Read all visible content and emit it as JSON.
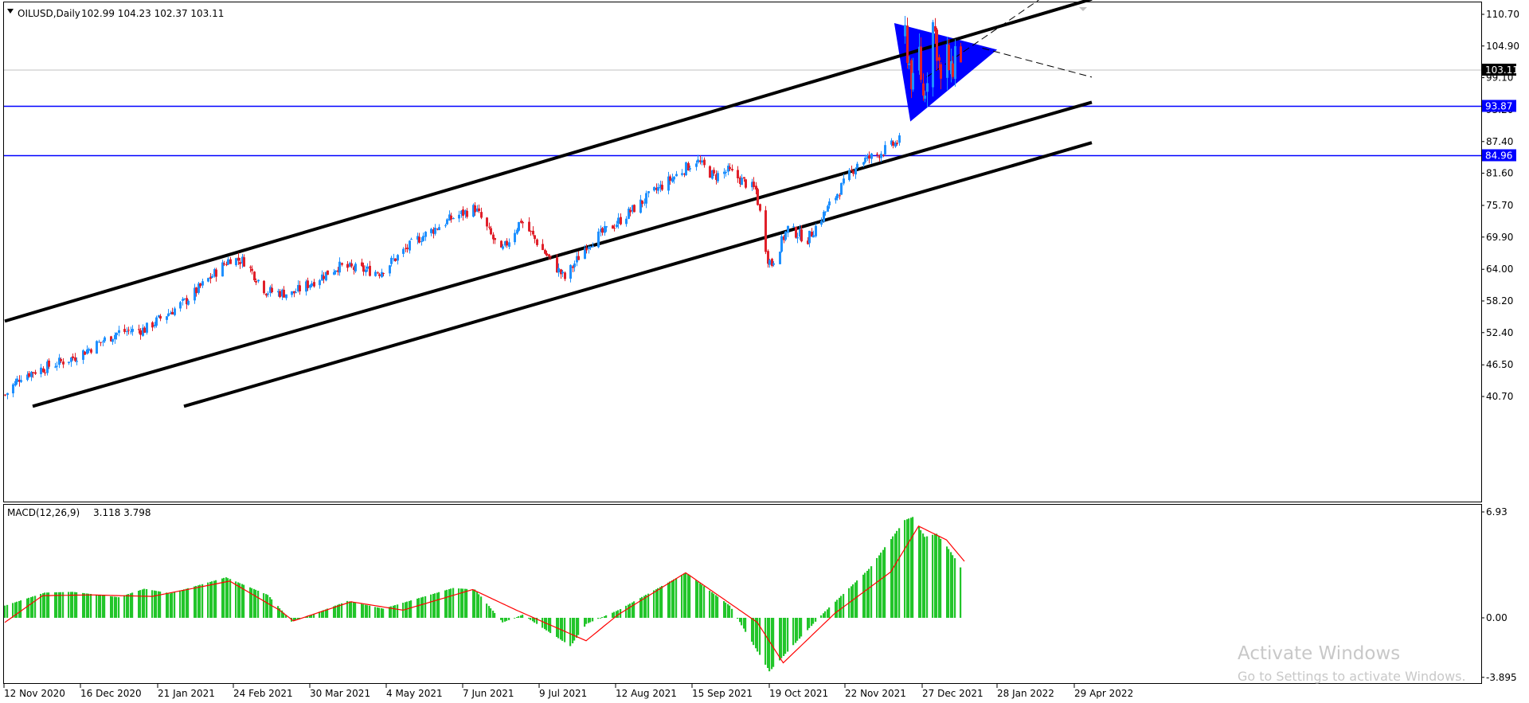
{
  "main_header": {
    "symbol_timeframe": "OILUSD,Daily",
    "ohlc": "102.99 104.23 102.37 103.11",
    "menu_arrow_icon": "triangle-down-icon"
  },
  "macd_header": {
    "indicator": "MACD(12,26,9)",
    "values": "3.118 3.798"
  },
  "watermark": {
    "line1": "Activate Windows",
    "line2": "Go to Settings to activate Windows."
  },
  "price_axis": {
    "ticks": [
      "110.70",
      "104.90",
      "99.10",
      "93.20",
      "87.40",
      "81.60",
      "75.70",
      "69.90",
      "64.00",
      "58.20",
      "52.40",
      "46.50",
      "40.70"
    ],
    "current_price_label": "103.11",
    "level_labels": [
      "93.87",
      "84.96"
    ]
  },
  "macd_axis": {
    "ticks": [
      "6.93",
      "0.00",
      "-3.895"
    ]
  },
  "time_axis": {
    "labels": [
      "12 Nov 2020",
      "16 Dec 2020",
      "21 Jan 2021",
      "24 Feb 2021",
      "30 Mar 2021",
      "4 May 2021",
      "7 Jun 2021",
      "9 Jul 2021",
      "12 Aug 2021",
      "15 Sep 2021",
      "19 Oct 2021",
      "22 Nov 2021",
      "27 Dec 2021",
      "28 Jan 2022",
      "29 Apr 2022"
    ]
  },
  "colors": {
    "bull_candle": "#1e90ff",
    "bear_candle": "#e0202a",
    "level_line": "#0000ff",
    "triangle_fill": "#0000ff",
    "channel_line": "#000000",
    "macd_histogram": "#22c52a",
    "macd_signal": "#ff0000",
    "current_price_bg": "#000000"
  },
  "chart_data": [
    {
      "type": "candlestick",
      "title": "OILUSD,Daily",
      "ylim": [
        38.9,
        114.2
      ],
      "x_range": [
        "2020-11-12",
        "2022-03-10"
      ],
      "waypoints": [
        {
          "date": "2020-11-12",
          "price": 41.0
        },
        {
          "date": "2020-11-20",
          "price": 44.5
        },
        {
          "date": "2020-12-16",
          "price": 47.8
        },
        {
          "date": "2021-01-08",
          "price": 52.5
        },
        {
          "date": "2021-01-21",
          "price": 53.0
        },
        {
          "date": "2021-02-10",
          "price": 58.0
        },
        {
          "date": "2021-03-05",
          "price": 66.0
        },
        {
          "date": "2021-03-12",
          "price": 65.5
        },
        {
          "date": "2021-03-23",
          "price": 60.0
        },
        {
          "date": "2021-04-05",
          "price": 59.5
        },
        {
          "date": "2021-04-28",
          "price": 64.5
        },
        {
          "date": "2021-05-19",
          "price": 63.5
        },
        {
          "date": "2021-06-07",
          "price": 69.5
        },
        {
          "date": "2021-06-25",
          "price": 73.5
        },
        {
          "date": "2021-07-06",
          "price": 75.2
        },
        {
          "date": "2021-07-19",
          "price": 67.0
        },
        {
          "date": "2021-07-29",
          "price": 73.0
        },
        {
          "date": "2021-08-09",
          "price": 67.5
        },
        {
          "date": "2021-08-20",
          "price": 62.3
        },
        {
          "date": "2021-08-31",
          "price": 68.5
        },
        {
          "date": "2021-09-15",
          "price": 72.5
        },
        {
          "date": "2021-10-05",
          "price": 78.5
        },
        {
          "date": "2021-10-25",
          "price": 84.0
        },
        {
          "date": "2021-11-03",
          "price": 81.0
        },
        {
          "date": "2021-11-10",
          "price": 82.0
        },
        {
          "date": "2021-11-24",
          "price": 78.5
        },
        {
          "date": "2021-11-30",
          "price": 66.0
        },
        {
          "date": "2021-12-02",
          "price": 65.0
        },
        {
          "date": "2021-12-10",
          "price": 71.5
        },
        {
          "date": "2021-12-20",
          "price": 69.5
        },
        {
          "date": "2021-12-27",
          "price": 73.5
        },
        {
          "date": "2022-01-14",
          "price": 83.5
        },
        {
          "date": "2022-01-24",
          "price": 85.0
        },
        {
          "date": "2022-02-04",
          "price": 87.5
        }
      ],
      "triangle_zone_candles": [
        {
          "date": "2022-02-07",
          "price": 107.0
        },
        {
          "date": "2022-02-09",
          "price": 101.5
        },
        {
          "date": "2022-02-11",
          "price": 97.0
        },
        {
          "date": "2022-02-14",
          "price": 103.5
        },
        {
          "date": "2022-02-16",
          "price": 95.5
        },
        {
          "date": "2022-02-18",
          "price": 100.5
        },
        {
          "date": "2022-02-21",
          "price": 109.0
        },
        {
          "date": "2022-02-23",
          "price": 105.0
        },
        {
          "date": "2022-02-25",
          "price": 98.0
        },
        {
          "date": "2022-02-28",
          "price": 103.0
        },
        {
          "date": "2022-03-02",
          "price": 99.0
        },
        {
          "date": "2022-03-04",
          "price": 104.0
        },
        {
          "date": "2022-03-07",
          "price": 103.11
        }
      ],
      "horizontal_levels": [
        93.87,
        84.96
      ],
      "current_price": 103.11,
      "trend_channel": [
        {
          "style": "solid",
          "from": {
            "date": "2020-11-12",
            "price": 54.5
          },
          "to": {
            "date": "2022-05-12",
            "price": 113.5
          }
        },
        {
          "style": "solid",
          "from": {
            "date": "2020-11-26",
            "price": 38.9
          },
          "to": {
            "date": "2022-05-12",
            "price": 94.6
          }
        },
        {
          "style": "solid",
          "from": {
            "date": "2021-02-10",
            "price": 38.9
          },
          "to": {
            "date": "2022-05-12",
            "price": 87.2
          }
        }
      ],
      "dashed_lines": [
        {
          "from": {
            "date": "2022-02-18",
            "price": 99.2
          },
          "to": {
            "date": "2022-04-26",
            "price": 116.0
          }
        },
        {
          "from": {
            "date": "2022-03-18",
            "price": 104.5
          },
          "to": {
            "date": "2022-05-12",
            "price": 99.2
          }
        }
      ],
      "triangle_pattern": [
        {
          "date": "2022-02-02",
          "price": 109.0
        },
        {
          "date": "2022-02-10",
          "price": 91.2
        },
        {
          "date": "2022-03-25",
          "price": 104.2
        }
      ]
    },
    {
      "type": "bar",
      "title": "MACD(12,26,9)",
      "ylim": [
        -3.895,
        6.93
      ],
      "histogram_waypoints": [
        {
          "date": "2020-11-12",
          "value": 0.8
        },
        {
          "date": "2020-12-02",
          "value": 1.65
        },
        {
          "date": "2020-12-16",
          "value": 1.7
        },
        {
          "date": "2021-01-08",
          "value": 1.35
        },
        {
          "date": "2021-01-21",
          "value": 1.9
        },
        {
          "date": "2021-02-03",
          "value": 1.6
        },
        {
          "date": "2021-03-03",
          "value": 2.65
        },
        {
          "date": "2021-03-24",
          "value": 1.5
        },
        {
          "date": "2021-04-05",
          "value": -0.25
        },
        {
          "date": "2021-04-13",
          "value": 0.1
        },
        {
          "date": "2021-05-03",
          "value": 1.1
        },
        {
          "date": "2021-05-21",
          "value": 0.6
        },
        {
          "date": "2021-06-25",
          "value": 1.95
        },
        {
          "date": "2021-07-06",
          "value": 1.85
        },
        {
          "date": "2021-07-20",
          "value": -0.3
        },
        {
          "date": "2021-07-30",
          "value": 0.2
        },
        {
          "date": "2021-08-23",
          "value": -1.85
        },
        {
          "date": "2021-08-31",
          "value": -0.4
        },
        {
          "date": "2021-09-16",
          "value": 0.5
        },
        {
          "date": "2021-10-20",
          "value": 2.95
        },
        {
          "date": "2021-11-11",
          "value": 0.8
        },
        {
          "date": "2021-12-01",
          "value": -3.5
        },
        {
          "date": "2021-12-15",
          "value": -1.5
        },
        {
          "date": "2021-12-28",
          "value": 0.3
        },
        {
          "date": "2022-01-20",
          "value": 3.2
        },
        {
          "date": "2022-02-07",
          "value": 6.4
        },
        {
          "date": "2022-02-11",
          "value": 6.6
        },
        {
          "date": "2022-02-17",
          "value": 5.3
        },
        {
          "date": "2022-02-23",
          "value": 5.5
        },
        {
          "date": "2022-03-01",
          "value": 4.5
        },
        {
          "date": "2022-03-07",
          "value": 3.3
        }
      ],
      "signal_waypoints": [
        {
          "date": "2020-11-12",
          "value": -0.3
        },
        {
          "date": "2020-12-01",
          "value": 1.45
        },
        {
          "date": "2020-12-25",
          "value": 1.5
        },
        {
          "date": "2021-01-25",
          "value": 1.4
        },
        {
          "date": "2021-03-05",
          "value": 2.4
        },
        {
          "date": "2021-03-30",
          "value": 0.5
        },
        {
          "date": "2021-04-06",
          "value": -0.2
        },
        {
          "date": "2021-05-05",
          "value": 1.05
        },
        {
          "date": "2021-05-31",
          "value": 0.5
        },
        {
          "date": "2021-07-05",
          "value": 1.85
        },
        {
          "date": "2021-07-27",
          "value": 0.5
        },
        {
          "date": "2021-08-31",
          "value": -1.5
        },
        {
          "date": "2021-09-16",
          "value": 0.2
        },
        {
          "date": "2021-10-20",
          "value": 2.95
        },
        {
          "date": "2021-11-25",
          "value": -0.3
        },
        {
          "date": "2021-12-08",
          "value": -2.95
        },
        {
          "date": "2022-01-03",
          "value": 0.3
        },
        {
          "date": "2022-01-31",
          "value": 3.0
        },
        {
          "date": "2022-02-14",
          "value": 6.0
        },
        {
          "date": "2022-02-28",
          "value": 5.1
        },
        {
          "date": "2022-03-09",
          "value": 3.7
        }
      ]
    }
  ]
}
